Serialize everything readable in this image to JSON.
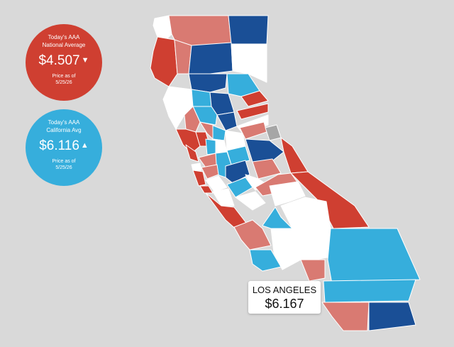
{
  "national": {
    "line1": "Today's AAA",
    "line2": "National Average",
    "price": "$4.507",
    "trend": "▼",
    "asof1": "Price as of",
    "asof2": "5/25/26",
    "color": "#cf3f31"
  },
  "state": {
    "line1": "Today's AAA",
    "line2": "California Avg",
    "price": "$6.116",
    "trend": "▲",
    "asof1": "Price as of",
    "asof2": "5/25/26",
    "color": "#36aedc"
  },
  "tooltip": {
    "name": "LOS ANGELES",
    "price": "$6.167"
  },
  "palette": {
    "dark_blue": "#1a4f96",
    "light_blue": "#36aedc",
    "red": "#cf3f31",
    "pink": "#d97a72",
    "white": "#ffffff",
    "gray": "#a6a6a6",
    "background": "#d9d9d9"
  }
}
